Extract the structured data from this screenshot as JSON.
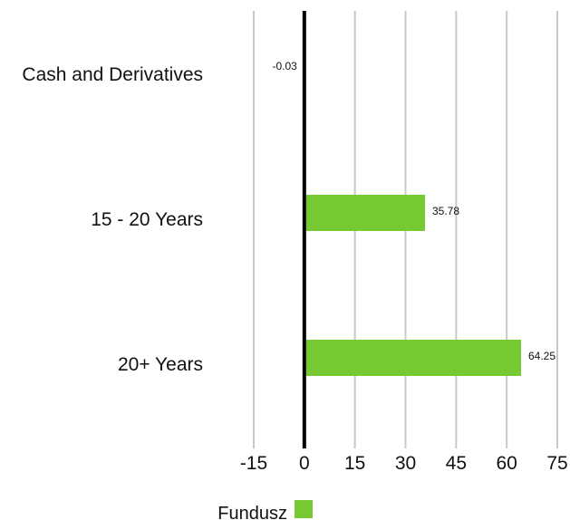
{
  "chart_data": {
    "type": "bar",
    "orientation": "horizontal",
    "categories": [
      "Cash and Derivatives",
      "15 - 20 Years",
      "20+ Years"
    ],
    "series": [
      {
        "name": "Fundusz",
        "values": [
          -0.03,
          35.78,
          64.25
        ],
        "color": "#76c933"
      }
    ],
    "data_labels": [
      "-0.03",
      "35.78",
      "64.25"
    ],
    "xlim": [
      -15,
      75
    ],
    "xticks": [
      -15,
      0,
      15,
      30,
      45,
      60,
      75
    ],
    "xtick_labels": [
      "-15",
      "0",
      "15",
      "30",
      "45",
      "60",
      "75"
    ],
    "grid": "vertical",
    "gridline_color": "#c8c8c8",
    "zero_line_color": "#000000",
    "legend": {
      "position": "bottom-center",
      "label": "Fundusz",
      "swatch_color": "#76c933"
    }
  }
}
